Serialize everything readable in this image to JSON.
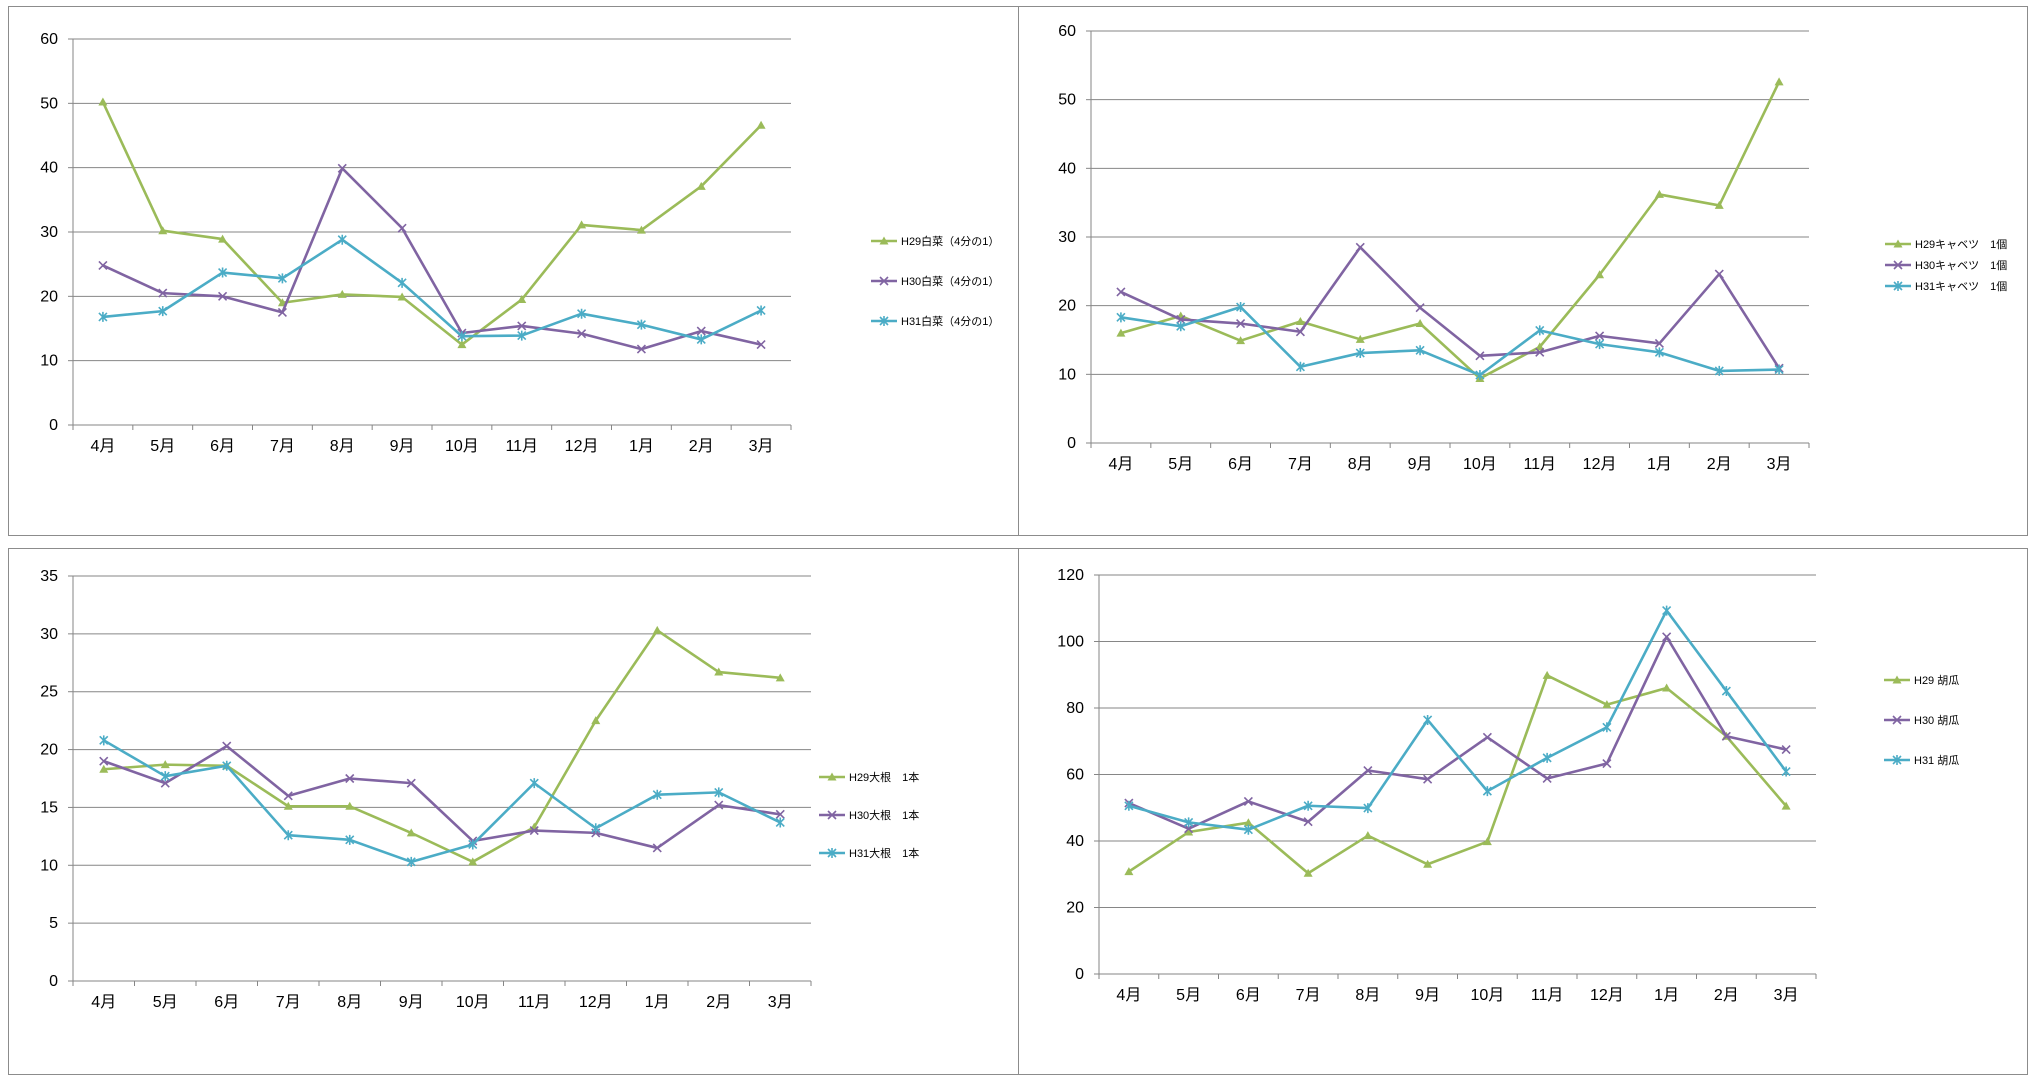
{
  "colors": {
    "H29": "#9bbb59",
    "H30": "#8064a2",
    "H31": "#4bacc6",
    "grid": "#868686"
  },
  "chart_data": [
    {
      "type": "line",
      "categories": [
        "4月",
        "5月",
        "6月",
        "7月",
        "8月",
        "9月",
        "10月",
        "11月",
        "12月",
        "1月",
        "2月",
        "3月"
      ],
      "ylim": [
        0,
        60
      ],
      "ystep": 10,
      "grid": true,
      "legend": "right",
      "series": [
        {
          "name": "H29白菜（4分の1）",
          "color": "#9bbb59",
          "marker": "triangle",
          "values": [
            50.2,
            30.2,
            28.9,
            19.0,
            20.3,
            19.9,
            12.5,
            19.5,
            31.1,
            30.3,
            37.1,
            46.6
          ]
        },
        {
          "name": "H30白菜（4分の1）",
          "color": "#8064a2",
          "marker": "x",
          "values": [
            24.8,
            20.5,
            20.0,
            17.5,
            39.9,
            30.6,
            14.3,
            15.4,
            14.2,
            11.8,
            14.6,
            12.5
          ]
        },
        {
          "name": "H31白菜（4分の1）",
          "color": "#4bacc6",
          "marker": "star",
          "values": [
            16.8,
            17.7,
            23.7,
            22.8,
            28.8,
            22.1,
            13.8,
            13.9,
            17.3,
            15.6,
            13.3,
            17.8
          ]
        }
      ]
    },
    {
      "type": "line",
      "categories": [
        "4月",
        "5月",
        "6月",
        "7月",
        "8月",
        "9月",
        "10月",
        "11月",
        "12月",
        "1月",
        "2月",
        "3月"
      ],
      "ylim": [
        0,
        60
      ],
      "ystep": 10,
      "grid": true,
      "legend": "right",
      "series": [
        {
          "name": "H29キャベツ　1個",
          "color": "#9bbb59",
          "marker": "triangle",
          "values": [
            16.0,
            18.5,
            14.9,
            17.7,
            15.1,
            17.4,
            9.4,
            14.0,
            24.5,
            36.2,
            34.6,
            52.6
          ]
        },
        {
          "name": "H30キャベツ　1個",
          "color": "#8064a2",
          "marker": "x",
          "values": [
            22.0,
            18.0,
            17.4,
            16.2,
            28.5,
            19.7,
            12.7,
            13.2,
            15.6,
            14.5,
            24.6,
            10.9
          ]
        },
        {
          "name": "H31キャベツ　1個",
          "color": "#4bacc6",
          "marker": "star",
          "values": [
            18.3,
            17.0,
            19.8,
            11.1,
            13.1,
            13.5,
            9.9,
            16.4,
            14.4,
            13.2,
            10.5,
            10.7
          ]
        }
      ]
    },
    {
      "type": "line",
      "categories": [
        "4月",
        "5月",
        "6月",
        "7月",
        "8月",
        "9月",
        "10月",
        "11月",
        "12月",
        "1月",
        "2月",
        "3月"
      ],
      "ylim": [
        0,
        35
      ],
      "ystep": 5,
      "grid": true,
      "legend": "right",
      "series": [
        {
          "name": "H29大根　1本",
          "color": "#9bbb59",
          "marker": "triangle",
          "values": [
            18.3,
            18.7,
            18.6,
            15.1,
            15.1,
            12.8,
            10.3,
            13.3,
            22.5,
            30.3,
            26.7,
            26.2
          ]
        },
        {
          "name": "H30大根　1本",
          "color": "#8064a2",
          "marker": "x",
          "values": [
            19.0,
            17.1,
            20.3,
            16.0,
            17.5,
            17.1,
            12.1,
            13.0,
            12.8,
            11.5,
            15.2,
            14.4
          ]
        },
        {
          "name": "H31大根　1本",
          "color": "#4bacc6",
          "marker": "star",
          "values": [
            20.8,
            17.7,
            18.6,
            12.6,
            12.2,
            10.3,
            11.8,
            17.1,
            13.2,
            16.1,
            16.3,
            13.7
          ]
        }
      ]
    },
    {
      "type": "line",
      "categories": [
        "4月",
        "5月",
        "6月",
        "7月",
        "8月",
        "9月",
        "10月",
        "11月",
        "12月",
        "1月",
        "2月",
        "3月"
      ],
      "ylim": [
        0,
        120
      ],
      "ystep": 20,
      "grid": true,
      "legend": "right",
      "series": [
        {
          "name": "H29 胡瓜",
          "color": "#9bbb59",
          "marker": "triangle",
          "values": [
            30.8,
            42.7,
            45.5,
            30.3,
            41.6,
            33.0,
            39.8,
            89.8,
            81.0,
            86.0,
            71.5,
            50.5
          ]
        },
        {
          "name": "H30 胡瓜",
          "color": "#8064a2",
          "marker": "x",
          "values": [
            51.4,
            43.7,
            51.9,
            45.8,
            61.2,
            58.6,
            71.2,
            58.8,
            63.3,
            101.4,
            71.5,
            67.5
          ]
        },
        {
          "name": "H31 胡瓜",
          "color": "#4bacc6",
          "marker": "star",
          "values": [
            50.6,
            45.6,
            43.4,
            50.6,
            49.9,
            76.4,
            55.0,
            65.0,
            74.2,
            109.3,
            85.1,
            60.9
          ]
        }
      ]
    }
  ]
}
